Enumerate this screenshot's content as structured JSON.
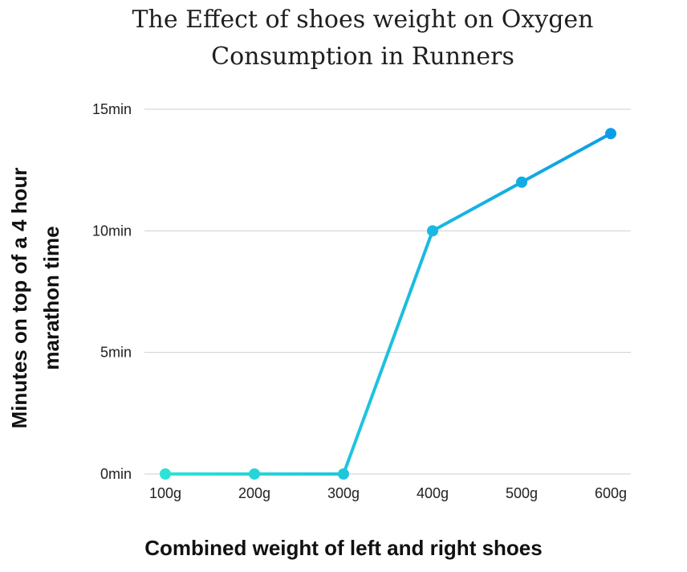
{
  "chart_data": {
    "type": "line",
    "title_lines": [
      "The Effect of shoes weight on Oxygen",
      "Consumption in Runners"
    ],
    "xlabel": "Combined weight of left and right shoes",
    "ylabel_lines": [
      "Minutes on top of a 4 hour",
      "marathon time"
    ],
    "categories": [
      "100g",
      "200g",
      "300g",
      "400g",
      "500g",
      "600g"
    ],
    "series": [
      {
        "values": [
          0,
          0,
          0,
          10,
          12,
          14
        ]
      }
    ],
    "y_ticks": [
      {
        "value": 0,
        "label": "0min"
      },
      {
        "value": 5,
        "label": "5min"
      },
      {
        "value": 10,
        "label": "10min"
      },
      {
        "value": 15,
        "label": "15min"
      }
    ],
    "ylim": [
      0,
      15
    ],
    "grid": true,
    "colors": {
      "gradient_start": "#2ee6d4",
      "gradient_end": "#0a9be8"
    }
  }
}
